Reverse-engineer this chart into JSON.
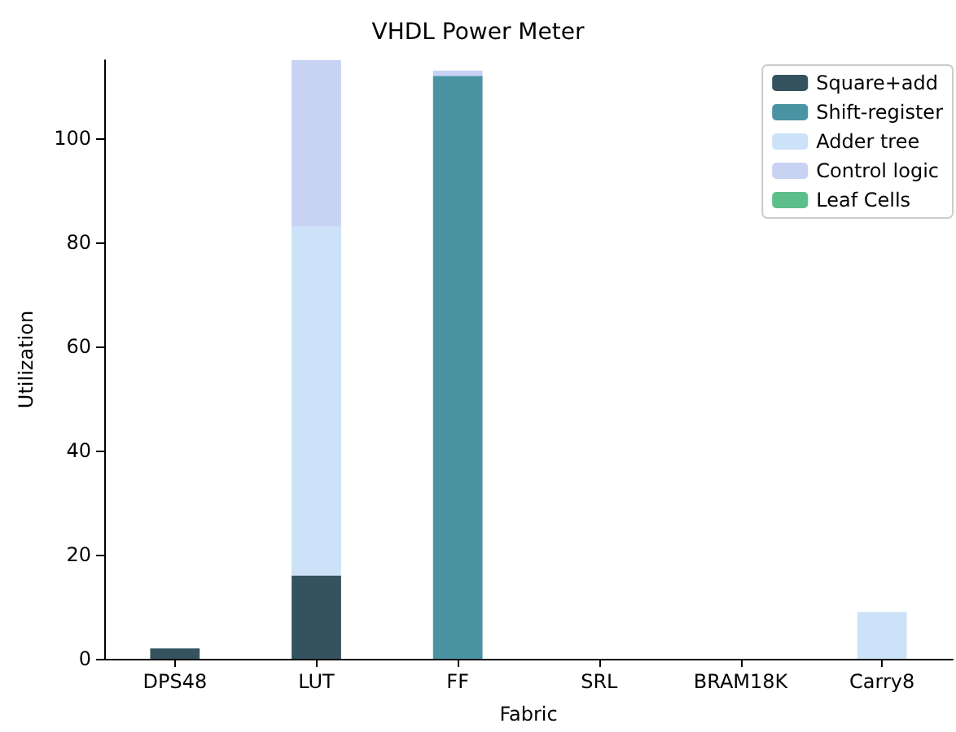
{
  "chart_data": {
    "type": "bar",
    "title": "VHDL Power Meter",
    "xlabel": "Fabric",
    "ylabel": "Utilization",
    "categories": [
      "DPS48",
      "LUT",
      "FF",
      "SRL",
      "BRAM18K",
      "Carry8"
    ],
    "stacked": true,
    "series": [
      {
        "name": "Square+add",
        "color": "#35535e",
        "values": [
          2,
          16,
          0,
          0,
          0,
          0
        ]
      },
      {
        "name": "Shift-register",
        "color": "#4a93a3",
        "values": [
          0,
          0,
          112,
          0,
          0,
          0
        ]
      },
      {
        "name": "Adder tree",
        "color": "#cce2f8",
        "values": [
          0,
          67,
          0,
          0,
          0,
          9
        ]
      },
      {
        "name": "Control logic",
        "color": "#c8d2f3",
        "values": [
          0,
          32,
          1,
          0,
          0,
          0
        ]
      },
      {
        "name": "Leaf Cells",
        "color": "#5cbf8b",
        "values": [
          0,
          0,
          0,
          0,
          0,
          0
        ]
      }
    ],
    "ylim": [
      0,
      115
    ],
    "yticks": [
      0,
      20,
      40,
      60,
      80,
      100
    ],
    "grid": false,
    "legend": "top right"
  }
}
